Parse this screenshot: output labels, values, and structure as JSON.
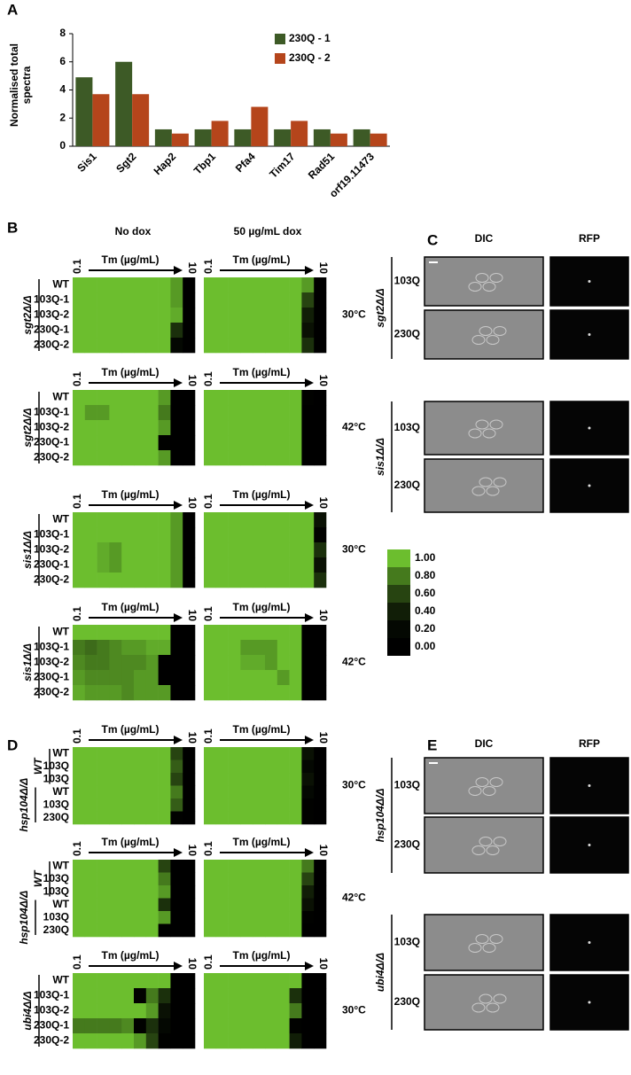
{
  "panel_labels": [
    "A",
    "B",
    "C",
    "D",
    "E"
  ],
  "chart_data": {
    "type": "bar",
    "ylabel": "Normalised total spectra",
    "categories": [
      "Sis1",
      "Sgt2",
      "Hap2",
      "Tbp1",
      "Pfa4",
      "Tim17",
      "Rad51",
      "orf19.11473"
    ],
    "series": [
      {
        "name": "230Q - 1",
        "color": "#3d5a26",
        "values": [
          4.9,
          6,
          1.2,
          1.2,
          1.2,
          1.2,
          1.2,
          1.2
        ]
      },
      {
        "name": "230Q - 2",
        "color": "#b5451b",
        "values": [
          3.7,
          3.7,
          0.9,
          1.8,
          2.8,
          1.8,
          0.9,
          0.9
        ]
      }
    ],
    "ylim": [
      0,
      8
    ],
    "yticks": [
      0,
      2,
      4,
      6,
      8
    ],
    "legend": "upper right"
  },
  "heatmaps": {
    "conditions": [
      "No dox",
      "50 µg/mL dox"
    ],
    "tm_axis": {
      "low": "0.1",
      "label": "Tm (µg/mL)",
      "high": "10"
    },
    "colorbar": {
      "ticks": [
        {
          "value": 1,
          "label": "1.00"
        },
        {
          "value": 0.8,
          "label": "0.80"
        },
        {
          "value": 0.6,
          "label": "0.60"
        },
        {
          "value": 0.4,
          "label": "0.40"
        },
        {
          "value": 0.2,
          "label": "0.20"
        },
        {
          "value": 0,
          "label": "0.00"
        }
      ]
    },
    "blocks": [
      {
        "genotype": [
          "sgt2Δ/Δ"
        ],
        "temperature": "30°C",
        "rows": [
          "WT",
          "103Q-1",
          "103Q-2",
          "230Q-1",
          "230Q-2"
        ],
        "values": [
          [
            [
              1,
              1,
              1,
              1,
              1,
              1,
              1,
              1,
              0.9,
              0
            ],
            [
              1,
              1,
              1,
              1,
              1,
              1,
              1,
              1,
              0.9,
              0
            ],
            [
              1,
              1,
              1,
              1,
              1,
              1,
              1,
              1,
              0.95,
              0
            ],
            [
              1,
              1,
              1,
              1,
              1,
              1,
              1,
              1,
              0.5,
              0
            ],
            [
              1,
              1,
              1,
              1,
              1,
              1,
              1,
              1,
              0.2,
              0
            ]
          ],
          [
            [
              1,
              1,
              1,
              1,
              1,
              1,
              1,
              1,
              0.9,
              0
            ],
            [
              1,
              1,
              1,
              1,
              1,
              1,
              1,
              1,
              0.6,
              0
            ],
            [
              1,
              1,
              1,
              1,
              1,
              1,
              1,
              1,
              0.4,
              0
            ],
            [
              1,
              1,
              1,
              1,
              1,
              1,
              1,
              1,
              0.3,
              0
            ],
            [
              1,
              1,
              1,
              1,
              1,
              1,
              1,
              1,
              0.5,
              0
            ]
          ]
        ]
      },
      {
        "genotype": [
          "sgt2Δ/Δ"
        ],
        "temperature": "42°C",
        "rows": [
          "WT",
          "103Q-1",
          "103Q-2",
          "230Q-1",
          "230Q-2"
        ],
        "values": [
          [
            [
              1,
              1,
              1,
              1,
              1,
              1,
              1,
              0.9,
              0,
              0
            ],
            [
              1,
              0.9,
              0.9,
              1,
              1,
              1,
              1,
              0.8,
              0,
              0
            ],
            [
              1,
              1,
              1,
              1,
              1,
              1,
              1,
              0.9,
              0,
              0
            ],
            [
              1,
              1,
              1,
              1,
              1,
              1,
              1,
              0.1,
              0,
              0
            ],
            [
              1,
              1,
              1,
              1,
              1,
              1,
              1,
              0.9,
              0,
              0
            ]
          ],
          [
            [
              1,
              1,
              1,
              1,
              1,
              1,
              1,
              1,
              0.1,
              0
            ],
            [
              1,
              1,
              1,
              1,
              1,
              1,
              1,
              1,
              0.05,
              0
            ],
            [
              1,
              1,
              1,
              1,
              1,
              1,
              1,
              1,
              0,
              0
            ],
            [
              1,
              1,
              1,
              1,
              1,
              1,
              1,
              1,
              0,
              0
            ],
            [
              1,
              1,
              1,
              1,
              1,
              1,
              1,
              1,
              0,
              0
            ]
          ]
        ]
      },
      {
        "genotype": [
          "sis1Δ/Δ"
        ],
        "temperature": "30°C",
        "rows": [
          "WT",
          "103Q-1",
          "103Q-2",
          "230Q-1",
          "230Q-2"
        ],
        "values": [
          [
            [
              1,
              1,
              1,
              1,
              1,
              1,
              1,
              1,
              0.9,
              0
            ],
            [
              1,
              1,
              1,
              1,
              1,
              1,
              1,
              1,
              0.9,
              0
            ],
            [
              1,
              1,
              0.95,
              0.9,
              1,
              1,
              1,
              1,
              0.9,
              0
            ],
            [
              1,
              1,
              0.95,
              0.9,
              1,
              1,
              1,
              1,
              0.9,
              0
            ],
            [
              1,
              1,
              1,
              1,
              1,
              1,
              1,
              1,
              0.9,
              0
            ]
          ],
          [
            [
              1,
              1,
              1,
              1,
              1,
              1,
              1,
              1,
              1,
              0.3
            ],
            [
              1,
              1,
              1,
              1,
              1,
              1,
              1,
              1,
              1,
              0.1
            ],
            [
              1,
              1,
              1,
              1,
              1,
              1,
              1,
              1,
              1,
              0.5
            ],
            [
              1,
              1,
              1,
              1,
              1,
              1,
              1,
              1,
              1,
              0.3
            ],
            [
              1,
              1,
              1,
              1,
              1,
              1,
              1,
              1,
              1,
              0.5
            ]
          ]
        ]
      },
      {
        "genotype": [
          "sis1Δ/Δ"
        ],
        "temperature": "42°C",
        "rows": [
          "WT",
          "103Q-1",
          "103Q-2",
          "230Q-1",
          "230Q-2"
        ],
        "values": [
          [
            [
              1,
              1,
              1,
              1,
              1,
              1,
              1,
              1,
              0,
              0
            ],
            [
              0.8,
              0.75,
              0.8,
              0.85,
              0.9,
              0.9,
              0.95,
              0.95,
              0,
              0
            ],
            [
              0.85,
              0.8,
              0.8,
              0.85,
              0.85,
              0.85,
              0.9,
              0.05,
              0,
              0
            ],
            [
              0.9,
              0.85,
              0.85,
              0.85,
              0.85,
              0.9,
              0.9,
              0.05,
              0,
              0
            ],
            [
              0.95,
              0.9,
              0.9,
              0.9,
              0.85,
              0.9,
              0.9,
              0.9,
              0,
              0
            ]
          ],
          [
            [
              1,
              1,
              1,
              1,
              1,
              1,
              1,
              1,
              0,
              0
            ],
            [
              1,
              1,
              1,
              0.9,
              0.9,
              0.9,
              1,
              1,
              0,
              0
            ],
            [
              1,
              1,
              1,
              0.95,
              0.95,
              0.9,
              1,
              1,
              0,
              0
            ],
            [
              1,
              1,
              1,
              1,
              1,
              1,
              0.9,
              1,
              0,
              0
            ],
            [
              1,
              1,
              1,
              1,
              1,
              1,
              1,
              1,
              0,
              0
            ]
          ]
        ]
      },
      {
        "genotype": [
          "WT",
          "hsp104Δ/Δ"
        ],
        "temperature": "30°C",
        "rows": [
          "WT",
          "103Q",
          "103Q",
          "WT",
          "103Q",
          "230Q"
        ],
        "values": [
          [
            [
              1,
              1,
              1,
              1,
              1,
              1,
              1,
              1,
              0.6,
              0.05
            ],
            [
              1,
              1,
              1,
              1,
              1,
              1,
              1,
              1,
              0.7,
              0.05
            ],
            [
              1,
              1,
              1,
              1,
              1,
              1,
              1,
              1,
              0.6,
              0.05
            ],
            [
              1,
              1,
              1,
              1,
              1,
              1,
              1,
              1,
              0.8,
              0.05
            ],
            [
              1,
              1,
              1,
              1,
              1,
              1,
              1,
              1,
              0.7,
              0.05
            ],
            [
              1,
              1,
              1,
              1,
              1,
              1,
              1,
              1,
              0.1,
              0.05
            ]
          ],
          [
            [
              1,
              1,
              1,
              1,
              1,
              1,
              1,
              1,
              0.3,
              0
            ],
            [
              1,
              1,
              1,
              1,
              1,
              1,
              1,
              1,
              0.2,
              0
            ],
            [
              1,
              1,
              1,
              1,
              1,
              1,
              1,
              1,
              0.3,
              0
            ],
            [
              1,
              1,
              1,
              1,
              1,
              1,
              1,
              1,
              0.2,
              0
            ],
            [
              1,
              1,
              1,
              1,
              1,
              1,
              1,
              1,
              0.1,
              0
            ],
            [
              1,
              1,
              1,
              1,
              1,
              1,
              1,
              1,
              0.1,
              0
            ]
          ]
        ]
      },
      {
        "genotype": [
          "WT",
          "hsp104Δ/Δ"
        ],
        "temperature": "42°C",
        "rows": [
          "WT",
          "103Q",
          "103Q",
          "WT",
          "103Q",
          "230Q"
        ],
        "values": [
          [
            [
              1,
              1,
              1,
              1,
              1,
              1,
              1,
              0.6,
              0,
              0
            ],
            [
              1,
              1,
              1,
              1,
              1,
              1,
              1,
              0.8,
              0,
              0
            ],
            [
              1,
              1,
              1,
              1,
              1,
              1,
              1,
              0.9,
              0,
              0
            ],
            [
              1,
              1,
              1,
              1,
              1,
              1,
              1,
              0.5,
              0,
              0
            ],
            [
              1,
              1,
              1,
              1,
              1,
              1,
              1,
              0.9,
              0,
              0
            ],
            [
              1,
              1,
              1,
              1,
              1,
              1,
              1,
              0.05,
              0,
              0
            ]
          ],
          [
            [
              1,
              1,
              1,
              1,
              1,
              1,
              1,
              1,
              0.8,
              0
            ],
            [
              1,
              1,
              1,
              1,
              1,
              1,
              1,
              1,
              0.6,
              0
            ],
            [
              1,
              1,
              1,
              1,
              1,
              1,
              1,
              1,
              0.4,
              0
            ],
            [
              1,
              1,
              1,
              1,
              1,
              1,
              1,
              1,
              0.3,
              0
            ],
            [
              1,
              1,
              1,
              1,
              1,
              1,
              1,
              1,
              0.1,
              0
            ],
            [
              1,
              1,
              1,
              1,
              1,
              1,
              1,
              1,
              0.05,
              0
            ]
          ]
        ]
      },
      {
        "genotype": [
          "ubi4Δ/Δ"
        ],
        "temperature": "30°C",
        "rows": [
          "WT",
          "103Q-1",
          "103Q-2",
          "230Q-1",
          "230Q-2"
        ],
        "values": [
          [
            [
              1,
              1,
              1,
              1,
              1,
              1,
              1,
              1,
              0,
              0
            ],
            [
              1,
              1,
              1,
              1,
              1,
              0.1,
              0.8,
              0.5,
              0,
              0
            ],
            [
              1,
              1,
              1,
              1,
              1,
              1,
              0.9,
              0.3,
              0,
              0
            ],
            [
              0.8,
              0.8,
              0.8,
              0.8,
              0.85,
              0.1,
              0.5,
              0.2,
              0,
              0
            ],
            [
              1,
              1,
              1,
              1,
              1,
              0.9,
              0.6,
              0.1,
              0,
              0
            ]
          ],
          [
            [
              1,
              1,
              1,
              1,
              1,
              1,
              1,
              1,
              0.05,
              0
            ],
            [
              1,
              1,
              1,
              1,
              1,
              1,
              1,
              0.5,
              0,
              0
            ],
            [
              1,
              1,
              1,
              1,
              1,
              1,
              1,
              0.8,
              0,
              0
            ],
            [
              1,
              1,
              1,
              1,
              1,
              1,
              1,
              0.1,
              0,
              0
            ],
            [
              1,
              1,
              1,
              1,
              1,
              1,
              1,
              0.4,
              0,
              0
            ]
          ]
        ]
      }
    ]
  },
  "microscopy": [
    {
      "headers": [
        "DIC",
        "RFP"
      ],
      "groups": [
        {
          "genotype": "sgt2Δ/Δ",
          "rows": [
            "103Q",
            "230Q"
          ]
        },
        {
          "genotype": "sis1Δ/Δ",
          "rows": [
            "103Q",
            "230Q"
          ]
        }
      ]
    },
    {
      "headers": [
        "DIC",
        "RFP"
      ],
      "groups": [
        {
          "genotype": "hsp104Δ/Δ",
          "rows": [
            "103Q",
            "230Q"
          ]
        },
        {
          "genotype": "ubi4Δ/Δ",
          "rows": [
            "103Q",
            "230Q"
          ]
        }
      ]
    }
  ]
}
